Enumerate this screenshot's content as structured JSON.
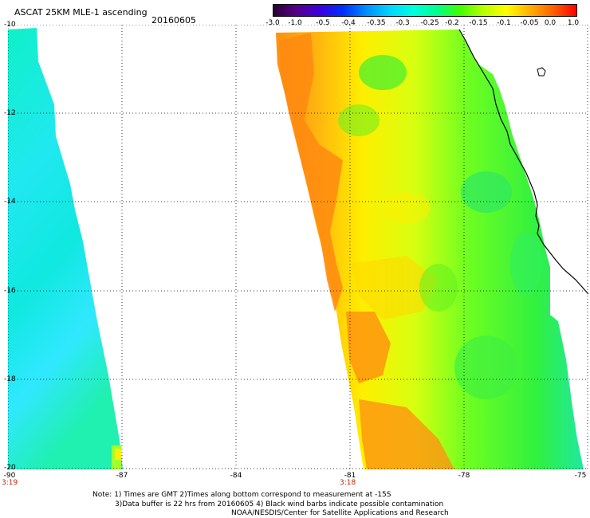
{
  "title": "ASCAT 25KM MLE-1 ascending",
  "date": "20160605",
  "colorbar": {
    "ticks": [
      "-3.0",
      "-1.0",
      "-0.5",
      "-0.4",
      "-0.35",
      "-0.3",
      "-0.25",
      "-0.2",
      "-0.15",
      "-0.1",
      "-0.05",
      "0.0",
      "1.0"
    ],
    "colors": [
      "#2a0033",
      "#55008a",
      "#3b00e0",
      "#0030ff",
      "#0090ff",
      "#00d6ff",
      "#00ffe0",
      "#00ff90",
      "#40ff00",
      "#b8ff00",
      "#ffff00",
      "#ffb000",
      "#ff6000",
      "#ff0000"
    ]
  },
  "latitude_labels": [
    "-10",
    "-12",
    "-14",
    "-16",
    "-18",
    "-20"
  ],
  "longitude_labels": [
    "-90",
    "-87",
    "-84",
    "-81",
    "-78",
    "-75"
  ],
  "time_labels": [
    "3:19",
    "3:18"
  ],
  "notes": [
    "Note: 1) Times are GMT 2)Times along bottom correspond to measurement at -15S",
    "3)Data buffer is 22 hrs from 20160605 4) Black wind barbs indicate possible contamination",
    "NOAA/NESDIS/Center for Satellite Applications and Research"
  ]
}
